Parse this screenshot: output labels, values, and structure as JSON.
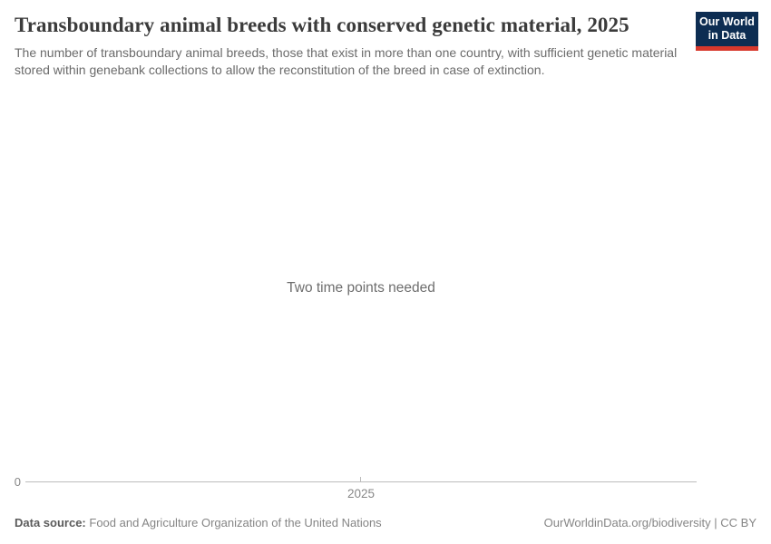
{
  "header": {
    "title": "Transboundary animal breeds with conserved genetic material, 2025",
    "subtitle": "The number of transboundary animal breeds, those that exist in more than one country, with sufficient genetic material stored within genebank collections to allow the reconstitution of the breed in case of extinction.",
    "logo": {
      "line1": "Our World",
      "line2": "in Data",
      "background_color": "#0d2d52",
      "accent_bar_color": "#d7382c"
    }
  },
  "chart": {
    "message": "Two time points needed",
    "y_axis_zero_label": "0",
    "x_axis_tick_label": "2025"
  },
  "chart_data": {
    "type": "line",
    "title": "Transboundary animal breeds with conserved genetic material, 2025",
    "subtitle": "The number of transboundary animal breeds, those that exist in more than one country, with sufficient genetic material stored within genebank collections to allow the reconstitution of the breed in case of extinction.",
    "series": [],
    "x_ticks": [
      "2025"
    ],
    "y_ticks": [
      0
    ],
    "annotations": [
      "Two time points needed"
    ],
    "grid": false,
    "legend": false
  },
  "footer": {
    "source_label": "Data source:",
    "source_value": "Food and Agriculture Organization of the United Nations",
    "attribution": "OurWorldinData.org/biodiversity | CC BY"
  },
  "colors": {
    "title_text": "#3b3b3b",
    "subtitle_text": "#6b6b6b",
    "message_text": "#6e6e6e",
    "axis_label_text": "#878787",
    "axis_line": "#bbbbbb",
    "footer_text": "#858585",
    "logo_navy": "#0d2d52",
    "logo_red": "#d7382c"
  }
}
